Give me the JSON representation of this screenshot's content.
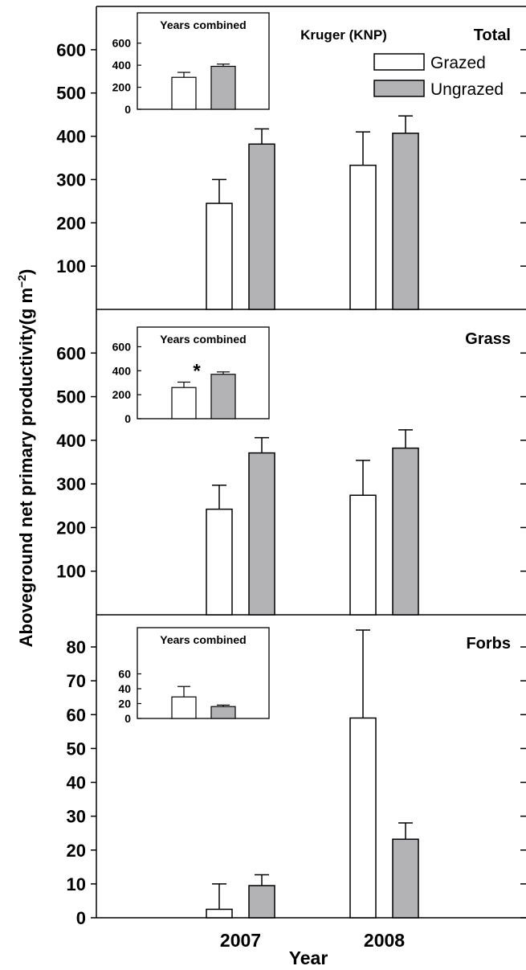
{
  "figure": {
    "ylabel": "Aboveground net primary productivity",
    "ylabel_unit_prefix": "(g m",
    "ylabel_unit_exp": "−2",
    "ylabel_unit_suffix": ")",
    "xlabel": "Year",
    "site_label": "Kruger (KNP)"
  },
  "legend": {
    "entries": [
      {
        "label": "Grazed",
        "color": "#ffffff"
      },
      {
        "label": "Ungrazed",
        "color": "#b3b3b6"
      }
    ]
  },
  "colors": {
    "grazed": "#ffffff",
    "ungrazed": "#b3b3b6",
    "stroke": "#000000"
  },
  "chart_data": [
    {
      "type": "bar",
      "title": "Total",
      "categories": [
        "2007",
        "2008"
      ],
      "series": [
        {
          "name": "Grazed",
          "values": [
            245,
            333
          ],
          "errors": [
            55,
            77
          ]
        },
        {
          "name": "Ungrazed",
          "values": [
            382,
            407
          ],
          "errors": [
            35,
            40
          ]
        }
      ],
      "yticks": [
        100,
        200,
        300,
        400,
        500,
        600
      ],
      "inset": {
        "title": "Years combined",
        "yticks": [
          0,
          200,
          400,
          600
        ],
        "series": [
          {
            "name": "Grazed",
            "value": 290,
            "error": 45
          },
          {
            "name": "Ungrazed",
            "value": 390,
            "error": 20
          }
        ],
        "annotation": ""
      }
    },
    {
      "type": "bar",
      "title": "Grass",
      "categories": [
        "2007",
        "2008"
      ],
      "series": [
        {
          "name": "Grazed",
          "values": [
            242,
            274
          ],
          "errors": [
            55,
            80
          ]
        },
        {
          "name": "Ungrazed",
          "values": [
            371,
            382
          ],
          "errors": [
            35,
            42
          ]
        }
      ],
      "yticks": [
        100,
        200,
        300,
        400,
        500,
        600
      ],
      "inset": {
        "title": "Years combined",
        "yticks": [
          0,
          200,
          400,
          600
        ],
        "series": [
          {
            "name": "Grazed",
            "value": 260,
            "error": 45
          },
          {
            "name": "Ungrazed",
            "value": 370,
            "error": 20
          }
        ],
        "annotation": "*"
      }
    },
    {
      "type": "bar",
      "title": "Forbs",
      "categories": [
        "2007",
        "2008"
      ],
      "series": [
        {
          "name": "Grazed",
          "values": [
            2.5,
            59
          ],
          "errors": [
            7.5,
            26
          ]
        },
        {
          "name": "Ungrazed",
          "values": [
            9.5,
            23.2
          ],
          "errors": [
            3.2,
            4.8
          ]
        }
      ],
      "yticks": [
        0,
        10,
        20,
        30,
        40,
        50,
        60,
        70,
        80
      ],
      "inset": {
        "title": "Years combined",
        "yticks": [
          0,
          20,
          40,
          60
        ],
        "series": [
          {
            "name": "Grazed",
            "value": 29,
            "error": 14
          },
          {
            "name": "Ungrazed",
            "value": 16,
            "error": 2
          }
        ],
        "annotation": ""
      }
    }
  ]
}
